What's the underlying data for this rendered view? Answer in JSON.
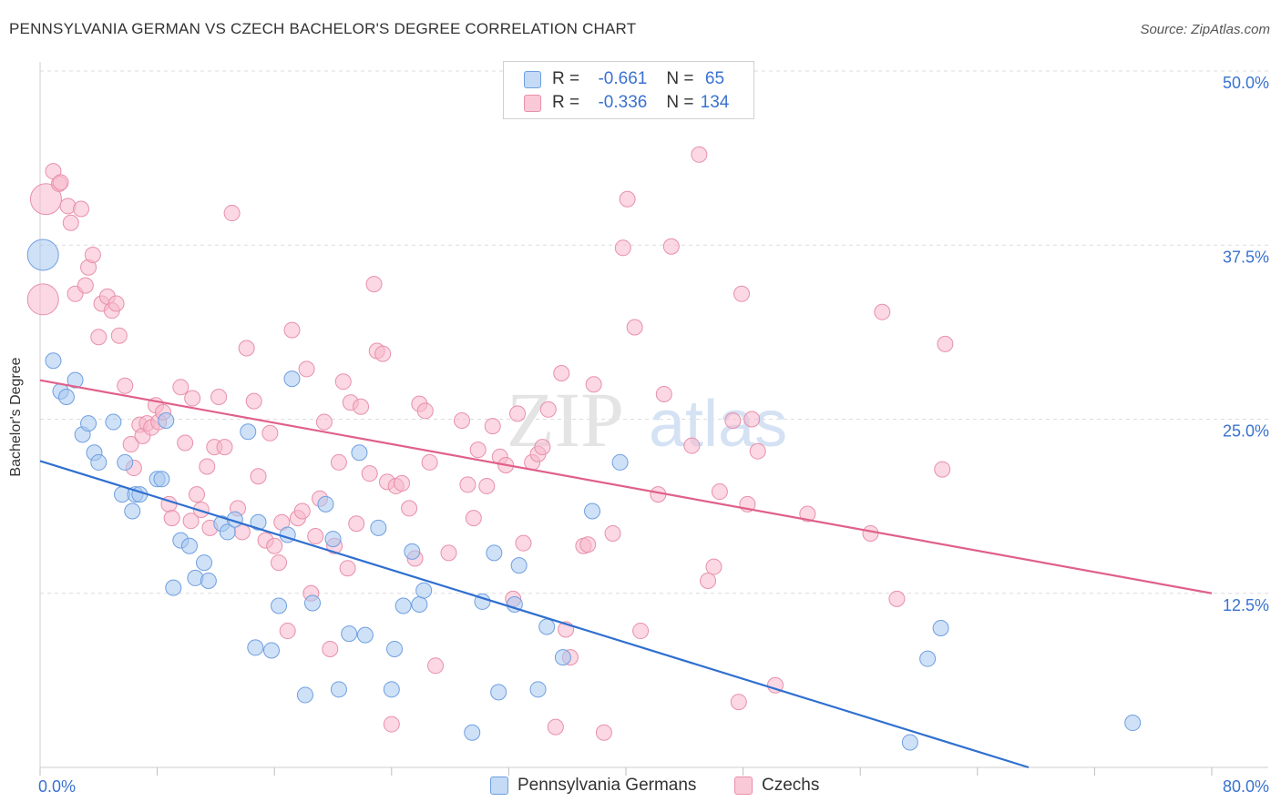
{
  "title": "PENNSYLVANIA GERMAN VS CZECH BACHELOR'S DEGREE CORRELATION CHART",
  "source": "Source: ZipAtlas.com",
  "watermark": {
    "zip": "ZIP",
    "atlas": "atlas"
  },
  "legend": {
    "rows": [
      {
        "r_label": "R =",
        "r_value": "-0.661",
        "n_label": "N =",
        "n_value": "65",
        "color": "#a8c8f0",
        "edge": "#6f9fe0"
      },
      {
        "r_label": "R =",
        "r_value": "-0.336",
        "n_label": "N =",
        "n_value": "134",
        "color": "#f8b8cc",
        "edge": "#e890aa"
      }
    ]
  },
  "bottom_legend": [
    {
      "label": "Pennsylvania Germans",
      "color": "#a8c8f0",
      "edge": "#6f9fe0"
    },
    {
      "label": "Czechs",
      "color": "#f8b8cc",
      "edge": "#e890aa"
    }
  ],
  "chart_data": {
    "type": "scatter",
    "title": "PENNSYLVANIA GERMAN VS CZECH BACHELOR'S DEGREE CORRELATION CHART",
    "xlabel": "",
    "ylabel": "Bachelor's Degree",
    "xlim": [
      0,
      80
    ],
    "ylim": [
      0,
      50
    ],
    "x_tick_labels": [
      "0.0%",
      "80.0%"
    ],
    "y_tick_labels": [
      "12.5%",
      "25.0%",
      "37.5%",
      "50.0%"
    ],
    "y_ticks": [
      12.5,
      25.0,
      37.5,
      50.0
    ],
    "grid": true,
    "legend_position": "top-center",
    "series": [
      {
        "name": "Pennsylvania Germans",
        "color": "#a8c8f0",
        "edge": "#6f9fe0",
        "line_color": "#2f6fd0",
        "trend": {
          "x0": 0,
          "y0": 22.0,
          "x1": 67.5,
          "y1": 0
        },
        "points": [
          {
            "x": 0.2,
            "y": 36.8,
            "big": true
          },
          {
            "x": 0.9,
            "y": 29.2
          },
          {
            "x": 1.4,
            "y": 27.0
          },
          {
            "x": 1.8,
            "y": 26.6
          },
          {
            "x": 2.4,
            "y": 27.8
          },
          {
            "x": 2.9,
            "y": 23.9
          },
          {
            "x": 3.3,
            "y": 24.7
          },
          {
            "x": 3.7,
            "y": 22.6
          },
          {
            "x": 4.0,
            "y": 21.9
          },
          {
            "x": 5.0,
            "y": 24.8
          },
          {
            "x": 5.6,
            "y": 19.6
          },
          {
            "x": 5.8,
            "y": 21.9
          },
          {
            "x": 6.3,
            "y": 18.4
          },
          {
            "x": 6.5,
            "y": 19.6
          },
          {
            "x": 6.8,
            "y": 19.6
          },
          {
            "x": 8.0,
            "y": 20.7
          },
          {
            "x": 8.3,
            "y": 20.7
          },
          {
            "x": 8.6,
            "y": 24.9
          },
          {
            "x": 9.1,
            "y": 12.9
          },
          {
            "x": 9.6,
            "y": 16.3
          },
          {
            "x": 10.2,
            "y": 15.9
          },
          {
            "x": 10.6,
            "y": 13.6
          },
          {
            "x": 11.2,
            "y": 14.7
          },
          {
            "x": 11.5,
            "y": 13.4
          },
          {
            "x": 12.4,
            "y": 17.5
          },
          {
            "x": 12.8,
            "y": 16.9
          },
          {
            "x": 13.3,
            "y": 17.8
          },
          {
            "x": 14.2,
            "y": 24.1
          },
          {
            "x": 14.7,
            "y": 8.6
          },
          {
            "x": 14.9,
            "y": 17.6
          },
          {
            "x": 15.8,
            "y": 8.4
          },
          {
            "x": 16.3,
            "y": 11.6
          },
          {
            "x": 16.9,
            "y": 16.7
          },
          {
            "x": 17.2,
            "y": 27.9
          },
          {
            "x": 18.1,
            "y": 5.2
          },
          {
            "x": 18.6,
            "y": 11.8
          },
          {
            "x": 19.5,
            "y": 18.9
          },
          {
            "x": 20.0,
            "y": 16.4
          },
          {
            "x": 20.4,
            "y": 5.6
          },
          {
            "x": 21.1,
            "y": 9.6
          },
          {
            "x": 21.8,
            "y": 22.6
          },
          {
            "x": 22.2,
            "y": 9.5
          },
          {
            "x": 23.1,
            "y": 17.2
          },
          {
            "x": 24.2,
            "y": 8.5
          },
          {
            "x": 24.0,
            "y": 5.6
          },
          {
            "x": 24.8,
            "y": 11.6
          },
          {
            "x": 25.4,
            "y": 15.5
          },
          {
            "x": 25.9,
            "y": 11.7
          },
          {
            "x": 26.2,
            "y": 12.7
          },
          {
            "x": 29.5,
            "y": 2.5
          },
          {
            "x": 30.2,
            "y": 11.9
          },
          {
            "x": 31.0,
            "y": 15.4
          },
          {
            "x": 31.3,
            "y": 5.4
          },
          {
            "x": 32.4,
            "y": 11.7
          },
          {
            "x": 32.7,
            "y": 14.5
          },
          {
            "x": 34.0,
            "y": 5.6
          },
          {
            "x": 34.6,
            "y": 10.1
          },
          {
            "x": 35.7,
            "y": 7.9
          },
          {
            "x": 37.7,
            "y": 18.4
          },
          {
            "x": 39.6,
            "y": 21.9
          },
          {
            "x": 59.4,
            "y": 1.8
          },
          {
            "x": 60.6,
            "y": 7.8
          },
          {
            "x": 61.5,
            "y": 10.0
          },
          {
            "x": 74.6,
            "y": 3.2
          }
        ]
      },
      {
        "name": "Czechs",
        "color": "#f8b8cc",
        "edge": "#e890aa",
        "line_color": "#e0608a",
        "trend": {
          "x0": 0,
          "y0": 27.8,
          "x1": 80,
          "y1": 12.5
        },
        "points": [
          {
            "x": 0.2,
            "y": 33.6,
            "big": true
          },
          {
            "x": 0.4,
            "y": 40.8,
            "big": true
          },
          {
            "x": 0.9,
            "y": 42.8
          },
          {
            "x": 1.3,
            "y": 41.9
          },
          {
            "x": 1.4,
            "y": 42.0
          },
          {
            "x": 1.9,
            "y": 40.3
          },
          {
            "x": 2.1,
            "y": 39.1
          },
          {
            "x": 2.4,
            "y": 34.0
          },
          {
            "x": 2.8,
            "y": 40.1
          },
          {
            "x": 3.1,
            "y": 34.6
          },
          {
            "x": 3.3,
            "y": 35.9
          },
          {
            "x": 3.6,
            "y": 36.8
          },
          {
            "x": 4.0,
            "y": 30.9
          },
          {
            "x": 4.2,
            "y": 33.3
          },
          {
            "x": 4.6,
            "y": 33.8
          },
          {
            "x": 4.9,
            "y": 32.8
          },
          {
            "x": 5.2,
            "y": 33.3
          },
          {
            "x": 5.4,
            "y": 31.0
          },
          {
            "x": 5.8,
            "y": 27.4
          },
          {
            "x": 6.2,
            "y": 23.2
          },
          {
            "x": 6.4,
            "y": 21.5
          },
          {
            "x": 6.8,
            "y": 24.6
          },
          {
            "x": 7.0,
            "y": 23.8
          },
          {
            "x": 7.3,
            "y": 24.7
          },
          {
            "x": 7.6,
            "y": 24.4
          },
          {
            "x": 7.9,
            "y": 26.0
          },
          {
            "x": 8.1,
            "y": 24.8
          },
          {
            "x": 8.4,
            "y": 25.5
          },
          {
            "x": 8.8,
            "y": 18.9
          },
          {
            "x": 9.0,
            "y": 17.9
          },
          {
            "x": 9.6,
            "y": 27.3
          },
          {
            "x": 9.9,
            "y": 23.3
          },
          {
            "x": 10.3,
            "y": 17.7
          },
          {
            "x": 10.4,
            "y": 26.5
          },
          {
            "x": 10.7,
            "y": 19.6
          },
          {
            "x": 11.0,
            "y": 18.5
          },
          {
            "x": 11.4,
            "y": 21.6
          },
          {
            "x": 11.6,
            "y": 17.2
          },
          {
            "x": 11.9,
            "y": 23.0
          },
          {
            "x": 12.2,
            "y": 26.6
          },
          {
            "x": 12.6,
            "y": 23.0
          },
          {
            "x": 13.1,
            "y": 39.8
          },
          {
            "x": 13.5,
            "y": 18.6
          },
          {
            "x": 13.8,
            "y": 16.9
          },
          {
            "x": 14.1,
            "y": 30.1
          },
          {
            "x": 14.6,
            "y": 26.3
          },
          {
            "x": 14.9,
            "y": 20.9
          },
          {
            "x": 15.4,
            "y": 16.3
          },
          {
            "x": 15.7,
            "y": 24.0
          },
          {
            "x": 16.0,
            "y": 15.9
          },
          {
            "x": 16.3,
            "y": 14.7
          },
          {
            "x": 16.5,
            "y": 17.6
          },
          {
            "x": 16.9,
            "y": 9.8
          },
          {
            "x": 17.2,
            "y": 31.4
          },
          {
            "x": 17.6,
            "y": 17.9
          },
          {
            "x": 17.9,
            "y": 18.4
          },
          {
            "x": 18.2,
            "y": 28.6
          },
          {
            "x": 18.5,
            "y": 12.5
          },
          {
            "x": 18.8,
            "y": 16.6
          },
          {
            "x": 19.1,
            "y": 19.3
          },
          {
            "x": 19.4,
            "y": 24.8
          },
          {
            "x": 19.8,
            "y": 8.5
          },
          {
            "x": 20.1,
            "y": 15.9
          },
          {
            "x": 20.4,
            "y": 21.9
          },
          {
            "x": 20.7,
            "y": 27.7
          },
          {
            "x": 21.0,
            "y": 14.3
          },
          {
            "x": 21.2,
            "y": 26.2
          },
          {
            "x": 21.6,
            "y": 17.5
          },
          {
            "x": 21.9,
            "y": 25.9
          },
          {
            "x": 22.5,
            "y": 21.1
          },
          {
            "x": 22.8,
            "y": 34.7
          },
          {
            "x": 23.0,
            "y": 29.9
          },
          {
            "x": 23.4,
            "y": 29.7
          },
          {
            "x": 23.7,
            "y": 20.5
          },
          {
            "x": 24.0,
            "y": 3.1
          },
          {
            "x": 24.3,
            "y": 20.2
          },
          {
            "x": 24.7,
            "y": 20.4
          },
          {
            "x": 25.2,
            "y": 18.6
          },
          {
            "x": 25.6,
            "y": 15.0
          },
          {
            "x": 25.9,
            "y": 26.1
          },
          {
            "x": 26.3,
            "y": 25.6
          },
          {
            "x": 26.6,
            "y": 21.9
          },
          {
            "x": 27.0,
            "y": 7.3
          },
          {
            "x": 27.9,
            "y": 15.4
          },
          {
            "x": 28.8,
            "y": 24.9
          },
          {
            "x": 29.2,
            "y": 20.3
          },
          {
            "x": 29.6,
            "y": 17.9
          },
          {
            "x": 29.9,
            "y": 22.8
          },
          {
            "x": 30.5,
            "y": 20.2
          },
          {
            "x": 30.9,
            "y": 24.5
          },
          {
            "x": 31.4,
            "y": 22.3
          },
          {
            "x": 31.8,
            "y": 21.7
          },
          {
            "x": 32.3,
            "y": 12.1
          },
          {
            "x": 32.6,
            "y": 25.4
          },
          {
            "x": 33.0,
            "y": 16.1
          },
          {
            "x": 33.6,
            "y": 21.9
          },
          {
            "x": 34.0,
            "y": 22.5
          },
          {
            "x": 34.3,
            "y": 23.0
          },
          {
            "x": 34.7,
            "y": 25.7
          },
          {
            "x": 35.2,
            "y": 2.9
          },
          {
            "x": 35.6,
            "y": 28.3
          },
          {
            "x": 35.9,
            "y": 9.9
          },
          {
            "x": 36.2,
            "y": 7.9
          },
          {
            "x": 37.1,
            "y": 15.9
          },
          {
            "x": 37.4,
            "y": 16.0
          },
          {
            "x": 37.8,
            "y": 27.5
          },
          {
            "x": 38.5,
            "y": 2.5
          },
          {
            "x": 39.1,
            "y": 16.8
          },
          {
            "x": 39.8,
            "y": 37.3
          },
          {
            "x": 40.1,
            "y": 40.8
          },
          {
            "x": 40.6,
            "y": 31.6
          },
          {
            "x": 41.0,
            "y": 9.8
          },
          {
            "x": 42.2,
            "y": 19.6
          },
          {
            "x": 42.6,
            "y": 26.8
          },
          {
            "x": 43.1,
            "y": 37.4
          },
          {
            "x": 44.5,
            "y": 23.1
          },
          {
            "x": 45.0,
            "y": 44.0
          },
          {
            "x": 45.6,
            "y": 13.4
          },
          {
            "x": 46.0,
            "y": 14.4
          },
          {
            "x": 46.4,
            "y": 19.8
          },
          {
            "x": 47.3,
            "y": 24.9
          },
          {
            "x": 47.7,
            "y": 4.7
          },
          {
            "x": 47.9,
            "y": 34.0
          },
          {
            "x": 48.3,
            "y": 18.9
          },
          {
            "x": 48.6,
            "y": 25.0
          },
          {
            "x": 49.0,
            "y": 22.7
          },
          {
            "x": 50.2,
            "y": 5.9
          },
          {
            "x": 52.4,
            "y": 18.2
          },
          {
            "x": 56.7,
            "y": 16.8
          },
          {
            "x": 57.5,
            "y": 32.7
          },
          {
            "x": 58.5,
            "y": 12.1
          },
          {
            "x": 61.6,
            "y": 21.4
          },
          {
            "x": 61.8,
            "y": 30.4
          }
        ]
      }
    ]
  }
}
